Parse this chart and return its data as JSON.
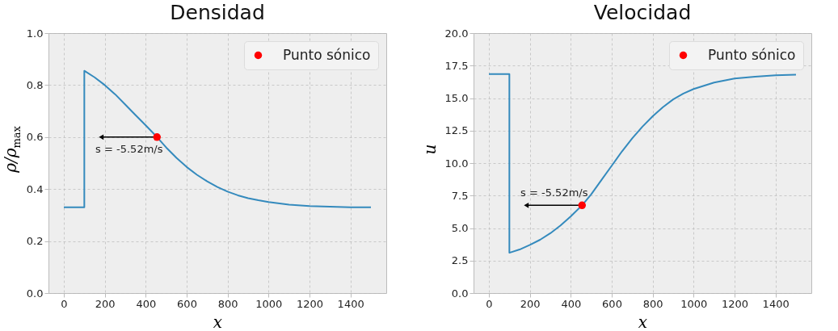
{
  "chart_data": [
    {
      "type": "line",
      "title": "Densidad",
      "xlabel": "x",
      "ylabel": "ρ/ρ$_{max}$",
      "xlim": [
        -75,
        1575
      ],
      "xticks": [
        0,
        200,
        400,
        600,
        800,
        1000,
        1200,
        1400
      ],
      "ylim": [
        0,
        1
      ],
      "yticks": [
        {
          "value": 0,
          "label": "0.0"
        },
        {
          "value": 0.2,
          "label": "0.2"
        },
        {
          "value": 0.4,
          "label": "0.4"
        },
        {
          "value": 0.6,
          "label": "0.6"
        },
        {
          "value": 0.8,
          "label": "0.8"
        },
        {
          "value": 1,
          "label": "1.0"
        }
      ],
      "grid": true,
      "legend": "top right",
      "series": [
        {
          "color": "#348abd",
          "x": [
            0,
            100,
            100,
            150,
            200,
            250,
            300,
            350,
            400,
            455,
            500,
            550,
            600,
            650,
            700,
            750,
            800,
            850,
            900,
            950,
            1000,
            1100,
            1200,
            1300,
            1400,
            1500
          ],
          "values": [
            0.33,
            0.33,
            0.855,
            0.83,
            0.8,
            0.765,
            0.725,
            0.685,
            0.645,
            0.6,
            0.56,
            0.52,
            0.485,
            0.455,
            0.43,
            0.408,
            0.39,
            0.376,
            0.365,
            0.357,
            0.35,
            0.34,
            0.335,
            0.332,
            0.33,
            0.33
          ]
        },
        {
          "type": "scatter",
          "name": "Punto sónico",
          "color": "#ff0000",
          "marker": "circle",
          "x": [
            455
          ],
          "values": [
            0.6
          ]
        }
      ],
      "annotations": [
        {
          "text": "s = -5.52m/s",
          "x": 455,
          "y": 0.6
        }
      ]
    },
    {
      "type": "line",
      "title": "Velocidad",
      "xlabel": "x",
      "ylabel": "u",
      "xlim": [
        -75,
        1575
      ],
      "xticks": [
        0,
        200,
        400,
        600,
        800,
        1000,
        1200,
        1400
      ],
      "ylim": [
        0,
        20
      ],
      "yticks": [
        {
          "value": 0,
          "label": "0.0"
        },
        {
          "value": 2.5,
          "label": "2.5"
        },
        {
          "value": 5,
          "label": "5.0"
        },
        {
          "value": 7.5,
          "label": "7.5"
        },
        {
          "value": 10,
          "label": "10.0"
        },
        {
          "value": 12.5,
          "label": "12.5"
        },
        {
          "value": 15,
          "label": "15.0"
        },
        {
          "value": 17.5,
          "label": "17.5"
        },
        {
          "value": 20,
          "label": "20.0"
        }
      ],
      "grid": true,
      "legend": "top right",
      "series": [
        {
          "color": "#348abd",
          "x": [
            0,
            100,
            100,
            150,
            200,
            250,
            300,
            350,
            400,
            455,
            500,
            550,
            600,
            650,
            700,
            750,
            800,
            850,
            900,
            950,
            1000,
            1100,
            1200,
            1300,
            1400,
            1500
          ],
          "values": [
            16.85,
            16.85,
            3.1,
            3.35,
            3.7,
            4.1,
            4.6,
            5.2,
            5.9,
            6.75,
            7.6,
            8.7,
            9.8,
            10.9,
            11.9,
            12.8,
            13.6,
            14.3,
            14.9,
            15.35,
            15.7,
            16.2,
            16.5,
            16.65,
            16.75,
            16.8
          ]
        },
        {
          "type": "scatter",
          "name": "Punto sónico",
          "color": "#ff0000",
          "marker": "circle",
          "x": [
            455
          ],
          "values": [
            6.75
          ]
        }
      ],
      "annotations": [
        {
          "text": "s = -5.52m/s",
          "x": 455,
          "y": 6.75
        }
      ]
    }
  ]
}
